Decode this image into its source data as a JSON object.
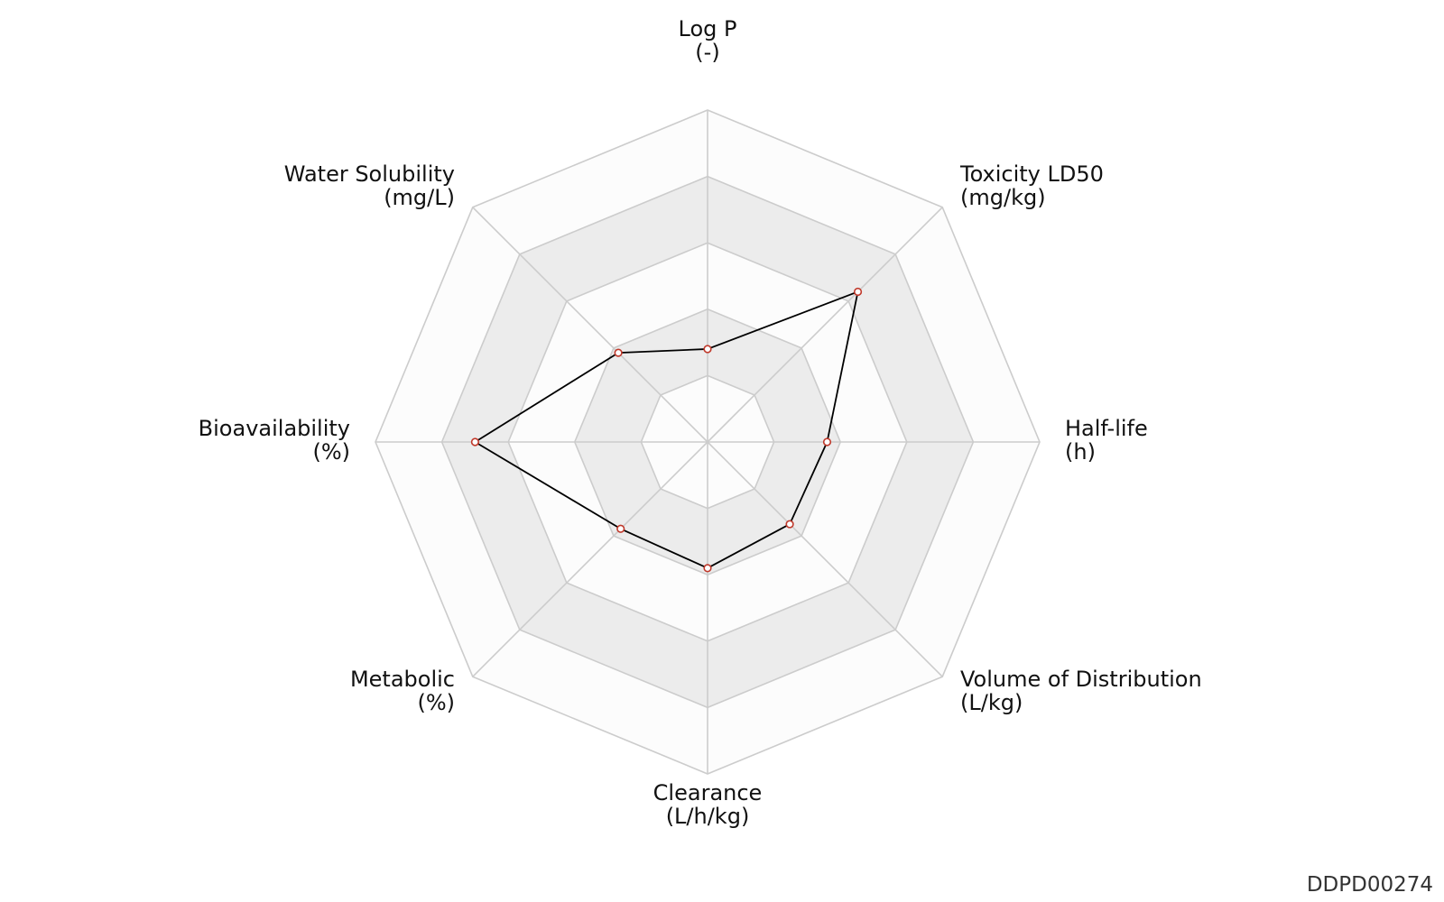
{
  "chart_data": {
    "type": "radar",
    "axes": [
      {
        "name": "Log P",
        "unit": "(-)"
      },
      {
        "name": "Toxicity LD50",
        "unit": "(mg/kg)"
      },
      {
        "name": "Half-life",
        "unit": "(h)"
      },
      {
        "name": "Volume of Distribution",
        "unit": "(L/kg)"
      },
      {
        "name": "Clearance",
        "unit": "(L/h/kg)"
      },
      {
        "name": "Metabolic",
        "unit": "(%)"
      },
      {
        "name": "Bioavailability",
        "unit": "(%)"
      },
      {
        "name": "Water Solubility",
        "unit": "(mg/L)"
      }
    ],
    "rlim": [
      0,
      5
    ],
    "rings": 5,
    "series": [
      {
        "values": [
          1.4,
          3.2,
          1.8,
          1.75,
          1.9,
          1.85,
          3.5,
          1.9
        ]
      }
    ],
    "colors": {
      "line": "#000000",
      "marker_edge": "#c0392b",
      "marker_fill": "#ffffff",
      "ring_fill_light": "#fcfcfc",
      "ring_fill_dark": "#ececec",
      "grid": "#cccccc"
    }
  },
  "footer": {
    "id": "DDPD00274"
  }
}
